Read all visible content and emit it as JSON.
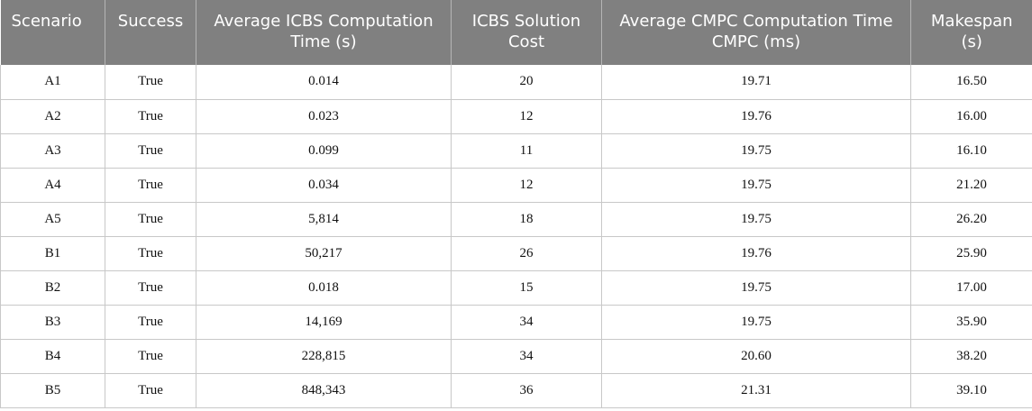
{
  "table": {
    "headers": [
      "Scenario",
      "Success",
      "Average ICBS Computation Time (s)",
      "ICBS Solution Cost",
      "Average CMPC Computation Time CMPC (ms)",
      "Makespan (s)"
    ],
    "rows": [
      [
        "A1",
        "True",
        "0.014",
        "20",
        "19.71",
        "16.50"
      ],
      [
        "A2",
        "True",
        "0.023",
        "12",
        "19.76",
        "16.00"
      ],
      [
        "A3",
        "True",
        "0.099",
        "11",
        "19.75",
        "16.10"
      ],
      [
        "A4",
        "True",
        "0.034",
        "12",
        "19.75",
        "21.20"
      ],
      [
        "A5",
        "True",
        "5,814",
        "18",
        "19.75",
        "26.20"
      ],
      [
        "B1",
        "True",
        "50,217",
        "26",
        "19.76",
        "25.90"
      ],
      [
        "B2",
        "True",
        "0.018",
        "15",
        "19.75",
        "17.00"
      ],
      [
        "B3",
        "True",
        "14,169",
        "34",
        "19.75",
        "35.90"
      ],
      [
        "B4",
        "True",
        "228,815",
        "34",
        "20.60",
        "38.20"
      ],
      [
        "B5",
        "True",
        "848,343",
        "36",
        "21.31",
        "39.10"
      ]
    ]
  }
}
